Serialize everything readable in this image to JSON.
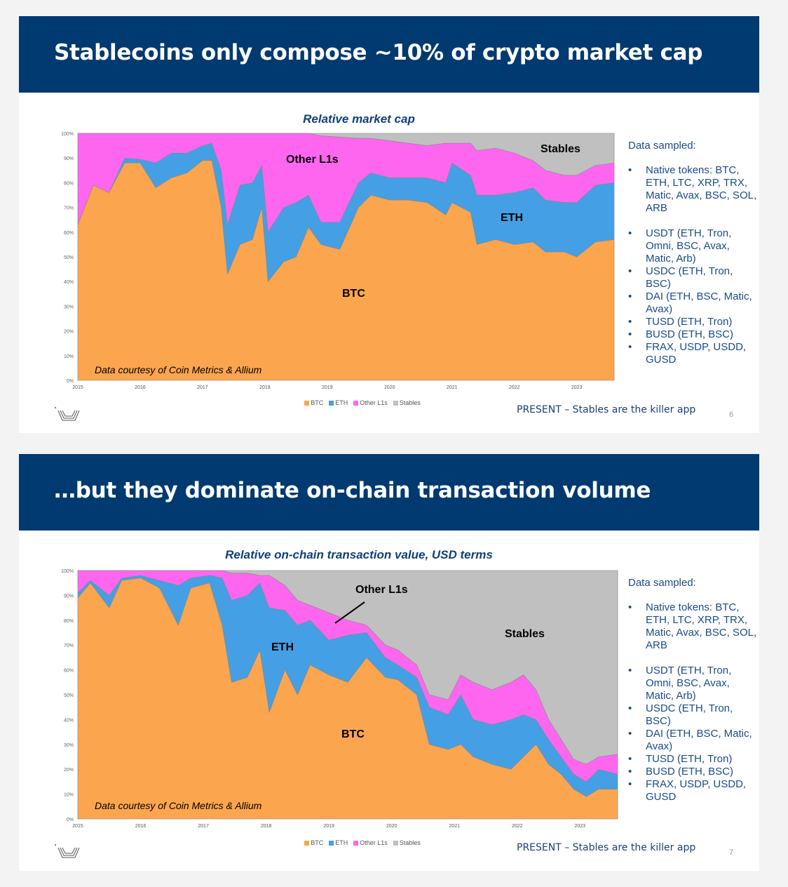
{
  "colors": {
    "header": "#003a70",
    "BTC": "#fba54e",
    "ETH": "#449fe4",
    "Other L1s": "#ff66f0",
    "Stables": "#c0c0c0"
  },
  "slides": [
    {
      "title": "Stablecoins only compose ~10% of crypto market cap",
      "chart_title": "Relative market cap",
      "credit": "Data courtesy of Coin Metrics & Allium",
      "annotations": {
        "other": "Other L1s",
        "stables": "Stables",
        "eth": "ETH",
        "btc": "BTC"
      },
      "side_heading": "Data sampled:",
      "side_items": [
        "Native tokens: BTC, ETH, LTC, XRP, TRX, Matic, Avax, BSC, SOL, ARB",
        "USDT (ETH, Tron, Omni, BSC, Avax, Matic, Arb)",
        "USDC (ETH, Tron, BSC)",
        "DAI (ETH, BSC, Matic, Avax)",
        "TUSD (ETH, Tron)",
        "BUSD (ETH, BSC)",
        "FRAX, USDP, USDD, GUSD"
      ],
      "footer": "PRESENT – Stables are the killer app",
      "page_number": "6"
    },
    {
      "title": "…but they dominate on-chain transaction volume",
      "chart_title": "Relative on-chain transaction value, USD terms",
      "credit": "Data courtesy of Coin Metrics & Allium",
      "annotations": {
        "other": "Other L1s",
        "stables": "Stables",
        "eth": "ETH",
        "btc": "BTC"
      },
      "side_heading": "Data sampled:",
      "side_items": [
        "Native tokens: BTC, ETH, LTC, XRP, TRX, Matic, Avax, BSC, SOL, ARB",
        "USDT (ETH, Tron, Omni, BSC, Avax, Matic, Arb)",
        "USDC (ETH, Tron, BSC)",
        "DAI (ETH, BSC, Matic, Avax)",
        "TUSD (ETH, Tron)",
        "BUSD (ETH, BSC)",
        "FRAX, USDP, USDD, GUSD"
      ],
      "footer": "PRESENT – Stables are the killer app",
      "page_number": "7"
    }
  ],
  "chart_data": [
    {
      "type": "area",
      "stacked": true,
      "title": "Relative market cap",
      "xlabel": "",
      "ylabel": "",
      "ylim": [
        0,
        100
      ],
      "xlim": [
        2015,
        2023.6
      ],
      "x_ticks": [
        "2015",
        "2016",
        "2017",
        "2018",
        "2019",
        "2020",
        "2021",
        "2022",
        "2023"
      ],
      "y_ticks": [
        "0%",
        "10%",
        "20%",
        "30%",
        "40%",
        "50%",
        "60%",
        "70%",
        "80%",
        "90%",
        "100%"
      ],
      "legend": [
        "BTC",
        "ETH",
        "Other L1s",
        "Stables"
      ],
      "legend_position": "bottom",
      "x": [
        2015.0,
        2015.25,
        2015.5,
        2015.75,
        2016.0,
        2016.25,
        2016.5,
        2016.75,
        2017.0,
        2017.15,
        2017.3,
        2017.4,
        2017.6,
        2017.8,
        2017.95,
        2018.05,
        2018.3,
        2018.5,
        2018.7,
        2018.9,
        2019.2,
        2019.5,
        2019.7,
        2020.0,
        2020.3,
        2020.6,
        2020.9,
        2021.0,
        2021.3,
        2021.4,
        2021.7,
        2022.0,
        2022.3,
        2022.5,
        2022.8,
        2023.0,
        2023.3,
        2023.6
      ],
      "series": [
        {
          "name": "BTC",
          "values": [
            63,
            79,
            76,
            88,
            88,
            78,
            82,
            84,
            89,
            89,
            70,
            43,
            55,
            57,
            70,
            40,
            48,
            50,
            62,
            55,
            53,
            70,
            75,
            73,
            73,
            72,
            67,
            72,
            68,
            55,
            57,
            55,
            56,
            52,
            52,
            50,
            56,
            57
          ]
        },
        {
          "name": "ETH",
          "values": [
            0,
            0,
            0,
            2,
            1.5,
            10,
            10,
            8,
            6,
            7,
            15,
            20,
            24,
            23,
            17,
            20,
            22,
            22,
            13,
            9,
            11,
            10,
            9,
            9,
            9,
            10,
            13,
            16,
            15,
            20,
            18,
            21,
            22,
            21,
            20,
            22,
            23,
            23
          ]
        },
        {
          "name": "Other L1s",
          "values": [
            37,
            21,
            24,
            10,
            10.5,
            12,
            8,
            8,
            5,
            4,
            15,
            37,
            21,
            20,
            13,
            40,
            30,
            28,
            25,
            35,
            34.5,
            18,
            14,
            15,
            14,
            13,
            16,
            8,
            13,
            18,
            19,
            16,
            11,
            12,
            11,
            11,
            8,
            8
          ]
        },
        {
          "name": "Stables",
          "values": [
            0,
            0,
            0,
            0,
            0,
            0,
            0,
            0,
            0,
            0,
            0,
            0,
            0,
            0,
            0,
            0,
            0,
            0,
            0,
            1,
            1.5,
            2,
            2,
            3,
            4,
            5,
            4,
            4,
            4,
            7,
            6,
            8,
            11,
            15,
            17,
            17,
            13,
            12
          ]
        }
      ]
    },
    {
      "type": "area",
      "stacked": true,
      "title": "Relative on-chain transaction value, USD terms",
      "xlabel": "",
      "ylabel": "",
      "ylim": [
        0,
        100
      ],
      "xlim": [
        2015,
        2023.6
      ],
      "x_ticks": [
        "2015",
        "2016",
        "2017",
        "2018",
        "2019",
        "2020",
        "2021",
        "2022",
        "2023"
      ],
      "y_ticks": [
        "0%",
        "10%",
        "20%",
        "30%",
        "40%",
        "50%",
        "60%",
        "70%",
        "80%",
        "90%",
        "100%"
      ],
      "legend": [
        "BTC",
        "ETH",
        "Other L1s",
        "Stables"
      ],
      "legend_position": "bottom",
      "x": [
        2015.0,
        2015.2,
        2015.5,
        2015.7,
        2016.0,
        2016.3,
        2016.6,
        2016.8,
        2017.1,
        2017.3,
        2017.45,
        2017.7,
        2017.9,
        2018.05,
        2018.3,
        2018.5,
        2018.7,
        2019.0,
        2019.3,
        2019.6,
        2019.9,
        2020.1,
        2020.4,
        2020.6,
        2020.9,
        2021.1,
        2021.3,
        2021.6,
        2021.9,
        2022.1,
        2022.3,
        2022.5,
        2022.7,
        2022.9,
        2023.1,
        2023.3,
        2023.6
      ],
      "series": [
        {
          "name": "BTC",
          "values": [
            89,
            95,
            85,
            96,
            97,
            93,
            78,
            93,
            95,
            78,
            55,
            57,
            68,
            43,
            60,
            50,
            62,
            58,
            55,
            65,
            57,
            56,
            50,
            30,
            28,
            30,
            25,
            22,
            20,
            25,
            30,
            22,
            18,
            12,
            9,
            12,
            12
          ]
        },
        {
          "name": "ETH",
          "values": [
            2,
            1,
            5,
            1,
            1,
            3,
            16,
            4,
            3,
            19,
            33,
            33,
            27,
            42,
            24,
            28,
            18,
            14,
            19,
            10,
            8,
            6,
            7,
            15,
            14,
            20,
            15,
            16,
            20,
            17,
            10,
            10,
            7,
            6,
            6,
            8,
            6
          ]
        },
        {
          "name": "Other L1s",
          "values": [
            9,
            4,
            10,
            3,
            2,
            4,
            6,
            3,
            2,
            3,
            11,
            9,
            3,
            13,
            10,
            10,
            6,
            11,
            6,
            3,
            5,
            6,
            5,
            5,
            6,
            8,
            15,
            14,
            15,
            16,
            12,
            8,
            7,
            6,
            7,
            5,
            8
          ]
        },
        {
          "name": "Stables",
          "values": [
            0,
            0,
            0,
            0,
            0,
            0,
            0,
            0,
            0,
            0,
            1,
            1,
            2,
            2,
            6,
            12,
            14,
            17,
            20,
            22,
            30,
            32,
            38,
            50,
            52,
            42,
            45,
            48,
            45,
            42,
            48,
            60,
            68,
            76,
            78,
            75,
            74
          ]
        }
      ]
    }
  ]
}
